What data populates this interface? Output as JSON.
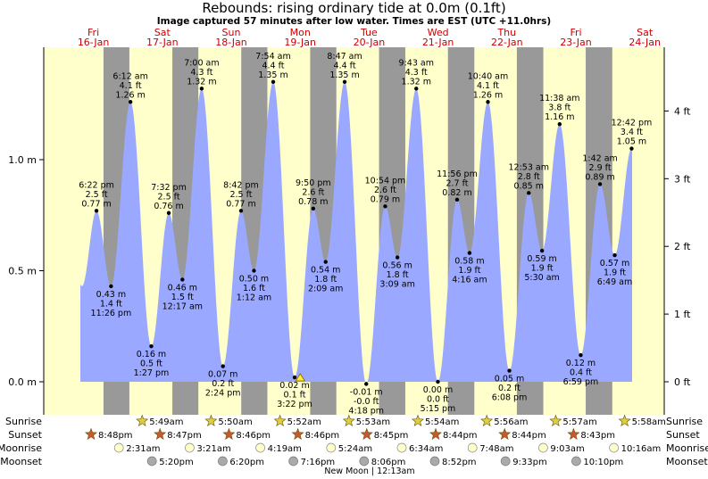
{
  "chart_data": {
    "type": "area",
    "title": "Rebounds: rising  ordinary tide at 0.0m (0.1ft)",
    "subtitle": "Image captured 57 minutes after low water. Times are EST (UTC +11.0hrs)",
    "ylabel_left": "m",
    "ylabel_right": "ft",
    "ylim": [
      -0.08,
      1.5
    ],
    "left_ticks": [
      {
        "value": 0.0,
        "label": "0.0 m"
      },
      {
        "value": 0.5,
        "label": "0.5 m"
      },
      {
        "value": 1.0,
        "label": "1.0 m"
      }
    ],
    "right_ticks": [
      {
        "value": 0,
        "label": "0 ft"
      },
      {
        "value": 1,
        "label": "1 ft"
      },
      {
        "value": 2,
        "label": "2 ft"
      },
      {
        "value": 3,
        "label": "3 ft"
      },
      {
        "value": 4,
        "label": "4 ft"
      }
    ],
    "days": [
      {
        "name": "Fri",
        "date": "16-Jan"
      },
      {
        "name": "Sat",
        "date": "17-Jan"
      },
      {
        "name": "Sun",
        "date": "18-Jan"
      },
      {
        "name": "Mon",
        "date": "19-Jan"
      },
      {
        "name": "Tue",
        "date": "20-Jan"
      },
      {
        "name": "Wed",
        "date": "21-Jan"
      },
      {
        "name": "Thu",
        "date": "22-Jan"
      },
      {
        "name": "Fri",
        "date": "23-Jan"
      },
      {
        "name": "Sat",
        "date": "24-Jan"
      }
    ],
    "tides": [
      {
        "day": 0,
        "time": "6:22 pm",
        "ft": "2.5 ft",
        "m": 0.77,
        "m_label": "0.77 m",
        "type": "high"
      },
      {
        "day": 0,
        "time": "11:26 pm",
        "ft": "1.4 ft",
        "m": 0.43,
        "m_label": "0.43 m",
        "type": "low"
      },
      {
        "day": 1,
        "time": "6:12 am",
        "ft": "4.1 ft",
        "m": 1.26,
        "m_label": "1.26 m",
        "type": "high"
      },
      {
        "day": 1,
        "time": "1:27 pm",
        "ft": "0.5 ft",
        "m": 0.16,
        "m_label": "0.16 m",
        "type": "low"
      },
      {
        "day": 1,
        "time": "7:32 pm",
        "ft": "2.5 ft",
        "m": 0.76,
        "m_label": "0.76 m",
        "type": "high"
      },
      {
        "day": 2,
        "time": "12:17 am",
        "ft": "1.5 ft",
        "m": 0.46,
        "m_label": "0.46 m",
        "type": "low"
      },
      {
        "day": 2,
        "time": "7:00 am",
        "ft": "4.3 ft",
        "m": 1.32,
        "m_label": "1.32 m",
        "type": "high"
      },
      {
        "day": 2,
        "time": "2:24 pm",
        "ft": "0.2 ft",
        "m": 0.07,
        "m_label": "0.07 m",
        "type": "low"
      },
      {
        "day": 2,
        "time": "8:42 pm",
        "ft": "2.5 ft",
        "m": 0.77,
        "m_label": "0.77 m",
        "type": "high"
      },
      {
        "day": 3,
        "time": "1:12 am",
        "ft": "1.6 ft",
        "m": 0.5,
        "m_label": "0.50 m",
        "type": "low"
      },
      {
        "day": 3,
        "time": "7:54 am",
        "ft": "4.4 ft",
        "m": 1.35,
        "m_label": "1.35 m",
        "type": "high"
      },
      {
        "day": 3,
        "time": "3:22 pm",
        "ft": "0.1 ft",
        "m": 0.02,
        "m_label": "0.02 m",
        "type": "low"
      },
      {
        "day": 3,
        "time": "9:50 pm",
        "ft": "2.6 ft",
        "m": 0.78,
        "m_label": "0.78 m",
        "type": "high"
      },
      {
        "day": 4,
        "time": "2:09 am",
        "ft": "1.8 ft",
        "m": 0.54,
        "m_label": "0.54 m",
        "type": "low"
      },
      {
        "day": 4,
        "time": "8:47 am",
        "ft": "4.4 ft",
        "m": 1.35,
        "m_label": "1.35 m",
        "type": "high"
      },
      {
        "day": 4,
        "time": "4:18 pm",
        "ft": "-0.0 ft",
        "m": -0.01,
        "m_label": "-0.01 m",
        "type": "low"
      },
      {
        "day": 4,
        "time": "10:54 pm",
        "ft": "2.6 ft",
        "m": 0.79,
        "m_label": "0.79 m",
        "type": "high"
      },
      {
        "day": 5,
        "time": "3:09 am",
        "ft": "1.8 ft",
        "m": 0.56,
        "m_label": "0.56 m",
        "type": "low"
      },
      {
        "day": 5,
        "time": "9:43 am",
        "ft": "4.3 ft",
        "m": 1.32,
        "m_label": "1.32 m",
        "type": "high"
      },
      {
        "day": 5,
        "time": "5:15 pm",
        "ft": "0.0 ft",
        "m": 0.0,
        "m_label": "0.00 m",
        "type": "low"
      },
      {
        "day": 5,
        "time": "11:56 pm",
        "ft": "2.7 ft",
        "m": 0.82,
        "m_label": "0.82 m",
        "type": "high"
      },
      {
        "day": 6,
        "time": "4:16 am",
        "ft": "1.9 ft",
        "m": 0.58,
        "m_label": "0.58 m",
        "type": "low"
      },
      {
        "day": 6,
        "time": "10:40 am",
        "ft": "4.1 ft",
        "m": 1.26,
        "m_label": "1.26 m",
        "type": "high"
      },
      {
        "day": 6,
        "time": "6:08 pm",
        "ft": "0.2 ft",
        "m": 0.05,
        "m_label": "0.05 m",
        "type": "low"
      },
      {
        "day": 7,
        "time": "12:53 am",
        "ft": "2.8 ft",
        "m": 0.85,
        "m_label": "0.85 m",
        "type": "high"
      },
      {
        "day": 7,
        "time": "5:30 am",
        "ft": "1.9 ft",
        "m": 0.59,
        "m_label": "0.59 m",
        "type": "low"
      },
      {
        "day": 7,
        "time": "11:38 am",
        "ft": "3.8 ft",
        "m": 1.16,
        "m_label": "1.16 m",
        "type": "high"
      },
      {
        "day": 7,
        "time": "6:59 pm",
        "ft": "0.4 ft",
        "m": 0.12,
        "m_label": "0.12 m",
        "type": "low"
      },
      {
        "day": 8,
        "time": "1:42 am",
        "ft": "2.9 ft",
        "m": 0.89,
        "m_label": "0.89 m",
        "type": "high"
      },
      {
        "day": 8,
        "time": "6:49 am",
        "ft": "1.9 ft",
        "m": 0.57,
        "m_label": "0.57 m",
        "type": "low"
      },
      {
        "day": 8,
        "time": "12:42 pm",
        "ft": "3.4 ft",
        "m": 1.05,
        "m_label": "1.05 m",
        "type": "high"
      }
    ],
    "current_marker": {
      "day": 4,
      "time": "5:15 pm"
    },
    "sun": {
      "sunset_day0": "8:48pm",
      "sunrise": [
        "5:49am",
        "5:50am",
        "5:52am",
        "5:53am",
        "5:54am",
        "5:56am",
        "5:57am",
        "5:58am"
      ],
      "sunset": [
        "8:47pm",
        "8:46pm",
        "8:46pm",
        "8:45pm",
        "8:44pm",
        "8:44pm",
        "8:43pm"
      ]
    },
    "moon": {
      "moonrise": [
        "2:31am",
        "3:21am",
        "4:19am",
        "5:24am",
        "6:34am",
        "7:48am",
        "9:03am",
        "10:16am"
      ],
      "moonset": [
        "5:20pm",
        "6:20pm",
        "7:16pm",
        "8:06pm",
        "8:52pm",
        "9:33pm",
        "10:10pm"
      ],
      "note": "New Moon | 12:13am"
    },
    "row_labels": {
      "sunrise": "Sunrise",
      "sunset": "Sunset",
      "moonrise": "Moonrise",
      "moonset": "Moonset"
    },
    "colors": {
      "day": "#ffffcc",
      "night": "#999999",
      "water": "#9aa8ff",
      "day_label": "#cc0000",
      "sun": "#ddcc44",
      "sunset": "#cc5533",
      "moonrise": "#ffffcc",
      "moonset": "#aaaaaa"
    }
  }
}
